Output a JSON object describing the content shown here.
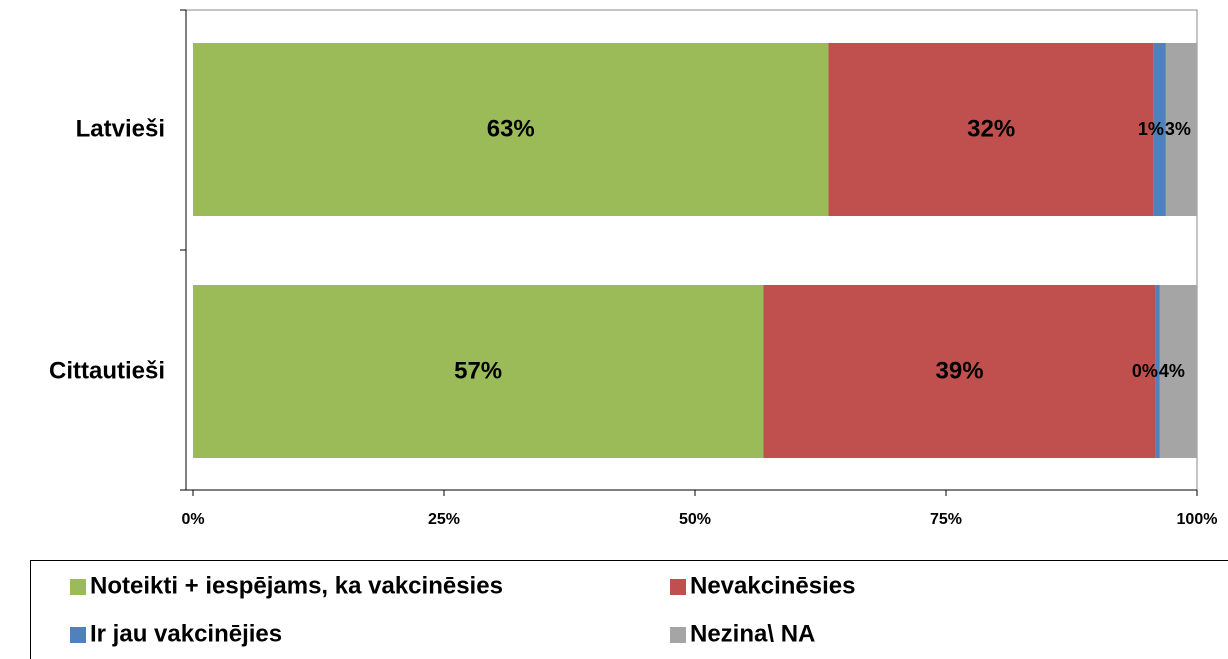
{
  "chart_data": {
    "type": "stacked-bar-horizontal",
    "categories": [
      "Latvieši",
      "Cittautieši"
    ],
    "series": [
      {
        "name": "Noteikti + iespējams, ka vakcinēsies",
        "color": "#9bbb59",
        "values": [
          63.3,
          56.8
        ],
        "value_labels": [
          "63%",
          "57%"
        ]
      },
      {
        "name": "Nevakcinēsies",
        "color": "#c0504d",
        "values": [
          32.4,
          39.1
        ],
        "value_labels": [
          "32%",
          "39%"
        ]
      },
      {
        "name": "Ir jau vakcinējies",
        "color": "#4f81bd",
        "values": [
          1.2,
          0.4
        ],
        "value_labels": [
          "1%",
          "0%"
        ]
      },
      {
        "name": "Nezina\\ NA",
        "color": "#a5a5a5",
        "values": [
          3.1,
          3.7
        ],
        "value_labels": [
          "3%",
          "4%"
        ]
      }
    ],
    "xlim": [
      0,
      100
    ],
    "xticks": [
      {
        "value": 0,
        "label": "0%"
      },
      {
        "value": 25,
        "label": "25%"
      },
      {
        "value": 50,
        "label": "50%"
      },
      {
        "value": 75,
        "label": "75%"
      },
      {
        "value": 100,
        "label": "100%"
      }
    ]
  }
}
